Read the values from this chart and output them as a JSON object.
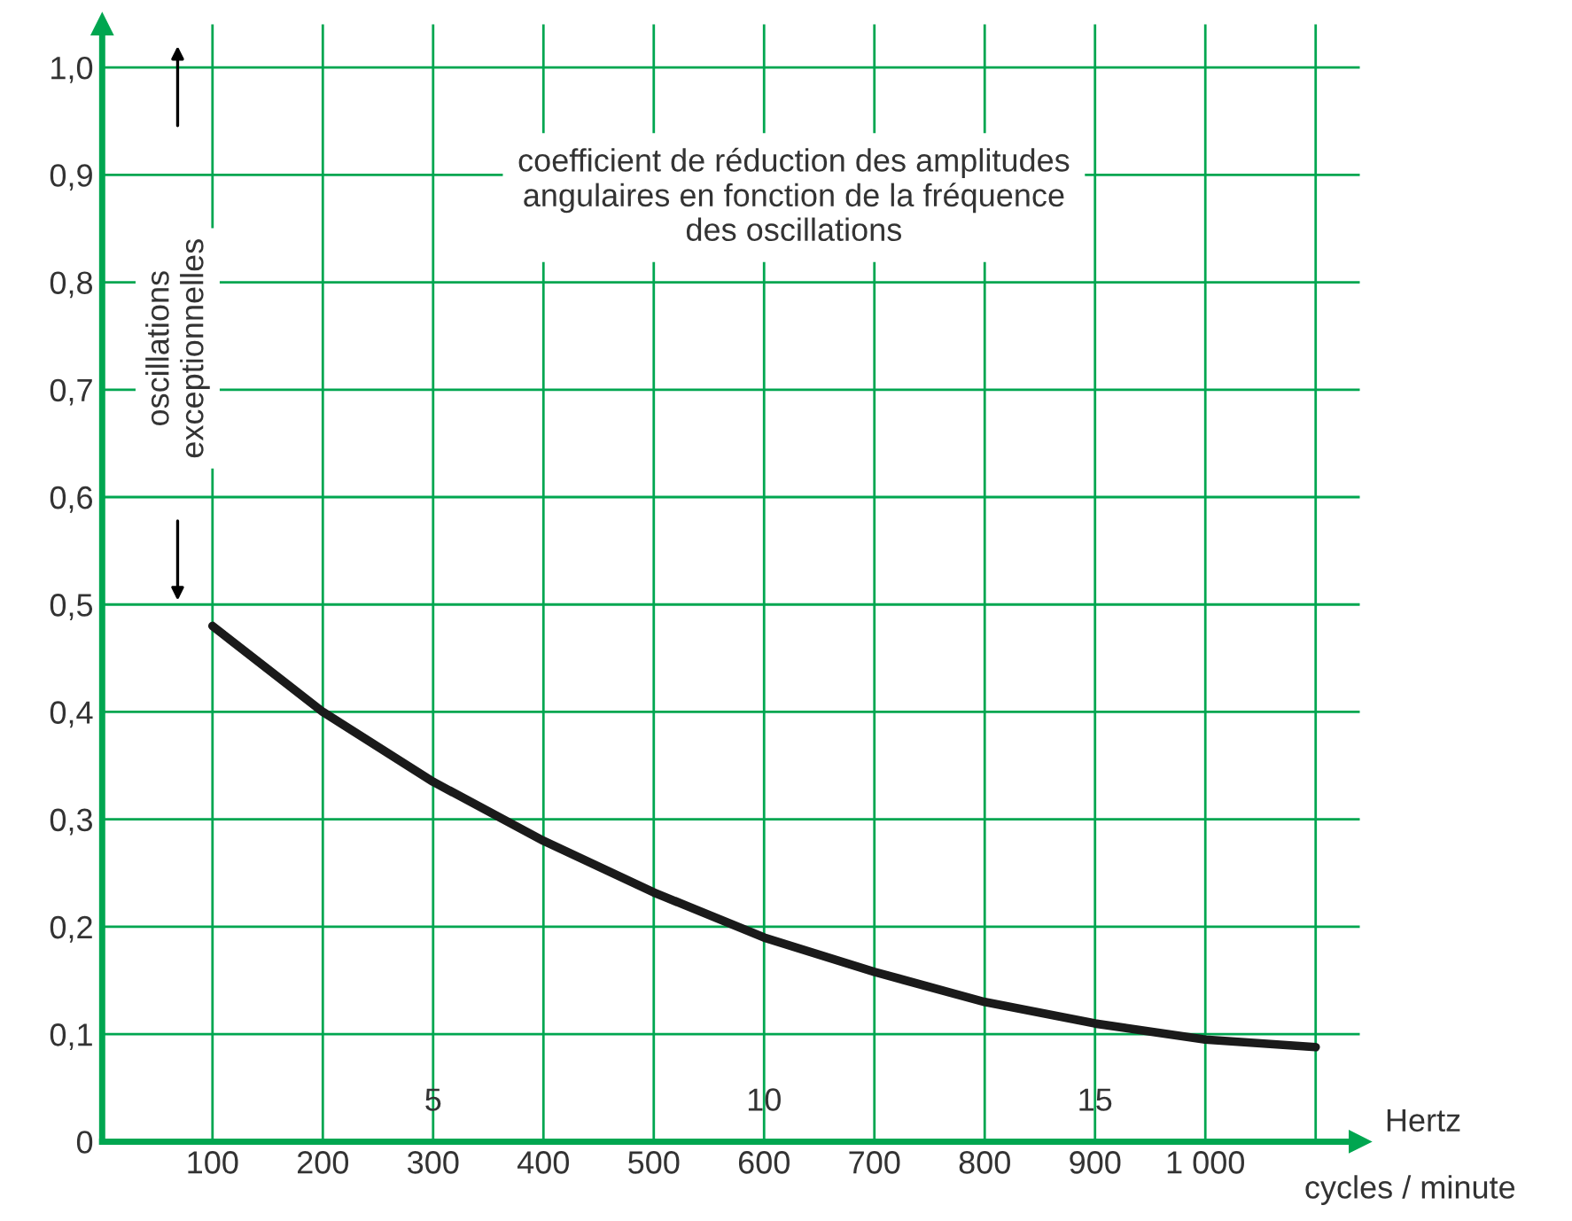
{
  "chart_data": {
    "type": "line",
    "xlabel": "cycles / minute",
    "x2label": "Hertz",
    "x": [
      100,
      200,
      300,
      400,
      500,
      600,
      700,
      800,
      900,
      1000,
      1100
    ],
    "series": [
      {
        "color": "#1a1a1a",
        "values": [
          0.48,
          0.4,
          0.335,
          0.28,
          0.232,
          0.19,
          0.158,
          0.13,
          0.11,
          0.095,
          0.088
        ]
      }
    ],
    "xlim": [
      0,
      1140
    ],
    "ylim": [
      0,
      1.04
    ],
    "xticks": [
      100,
      200,
      300,
      400,
      500,
      600,
      700,
      800,
      900,
      {
        "value": 1000,
        "label": "1 000"
      },
      {
        "value": 1100,
        "label": null
      }
    ],
    "yticks": [
      {
        "value": 0,
        "label": "0"
      },
      {
        "value": 0.1,
        "label": "0,1"
      },
      {
        "value": 0.2,
        "label": "0,2"
      },
      {
        "value": 0.3,
        "label": "0,3"
      },
      {
        "value": 0.4,
        "label": "0,4"
      },
      {
        "value": 0.5,
        "label": "0,5"
      },
      {
        "value": 0.6,
        "label": "0,6"
      },
      {
        "value": 0.7,
        "label": "0,7"
      },
      {
        "value": 0.8,
        "label": "0,8"
      },
      {
        "value": 0.9,
        "label": "0,9"
      },
      {
        "value": 1.0,
        "label": "1,0"
      }
    ],
    "x2lim": [
      0,
      19
    ],
    "x2ticks": [
      5,
      10,
      15
    ],
    "grid": true,
    "marker": "none",
    "line_style": "solid",
    "annotations": [
      "coefficient de réduction des amplitudes\nangulaires en fonction de la fréquence\ndes oscillations",
      "oscillations\nexceptionnelles"
    ]
  }
}
